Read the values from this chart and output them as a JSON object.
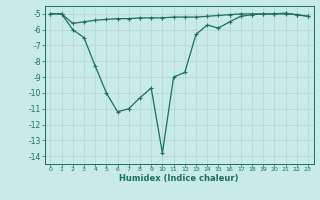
{
  "xlabel": "Humidex (Indice chaleur)",
  "background_color": "#c8eaea",
  "grid_color": "#b8d8d8",
  "line_color": "#1a7060",
  "xlim": [
    -0.5,
    23.5
  ],
  "ylim": [
    -14.5,
    -4.5
  ],
  "yticks": [
    -5,
    -6,
    -7,
    -8,
    -9,
    -10,
    -11,
    -12,
    -13,
    -14
  ],
  "xticks": [
    0,
    1,
    2,
    3,
    4,
    5,
    6,
    7,
    8,
    9,
    10,
    11,
    12,
    13,
    14,
    15,
    16,
    17,
    18,
    19,
    20,
    21,
    22,
    23
  ],
  "line1_x": [
    0,
    1,
    2,
    3,
    4,
    5,
    6,
    7,
    8,
    9,
    10,
    11,
    12,
    13,
    14,
    15,
    16,
    17,
    18,
    19,
    20,
    21,
    22,
    23
  ],
  "line1_y": [
    -5.0,
    -5.0,
    -5.6,
    -5.5,
    -5.4,
    -5.35,
    -5.3,
    -5.3,
    -5.25,
    -5.25,
    -5.25,
    -5.2,
    -5.2,
    -5.2,
    -5.15,
    -5.1,
    -5.05,
    -5.0,
    -5.0,
    -5.0,
    -5.0,
    -5.0,
    -5.05,
    -5.15
  ],
  "line2_x": [
    0,
    1,
    2,
    3,
    4,
    5,
    6,
    7,
    8,
    9,
    10,
    11,
    12,
    13,
    14,
    15,
    16,
    17,
    18,
    19,
    20,
    21,
    22,
    23
  ],
  "line2_y": [
    -5.0,
    -5.0,
    -6.0,
    -6.5,
    -8.3,
    -10.0,
    -11.2,
    -11.0,
    -10.3,
    -9.7,
    -13.8,
    -9.0,
    -8.7,
    -6.3,
    -5.7,
    -5.9,
    -5.5,
    -5.15,
    -5.05,
    -5.0,
    -5.0,
    -4.95,
    -5.05,
    -5.15
  ]
}
